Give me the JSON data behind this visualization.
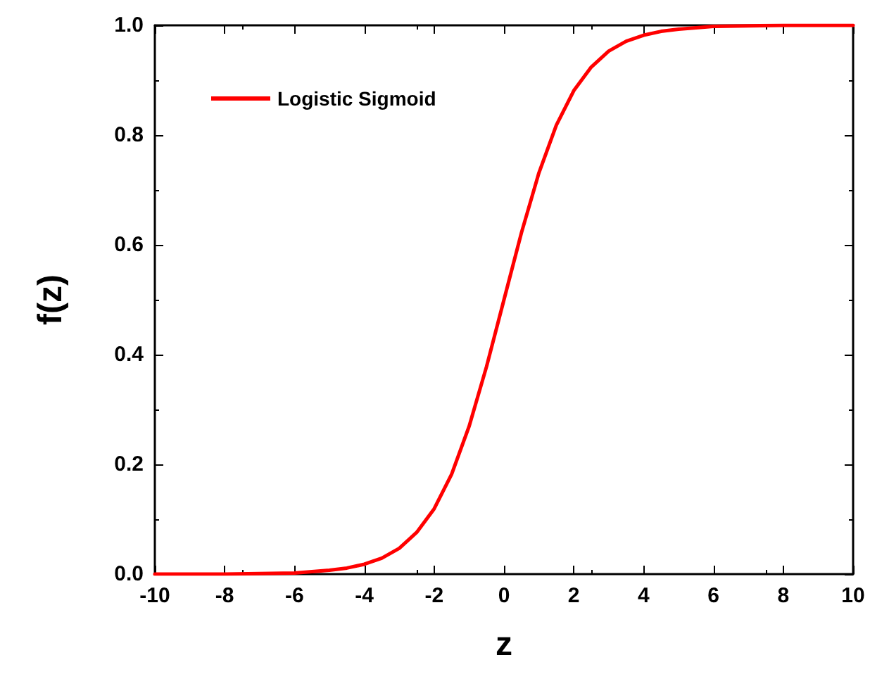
{
  "chart_data": {
    "type": "line",
    "xlabel": "z",
    "ylabel": "f(z)",
    "x": [
      -10,
      -9,
      -8,
      -7,
      -6,
      -5,
      -4.5,
      -4,
      -3.5,
      -3,
      -2.5,
      -2,
      -1.5,
      -1,
      -0.5,
      0,
      0.5,
      1,
      1.5,
      2,
      2.5,
      3,
      3.5,
      4,
      4.5,
      5,
      6,
      7,
      8,
      9,
      10
    ],
    "series": [
      {
        "name": "Logistic Sigmoid",
        "color": "#ff0000",
        "values": [
          0.0,
          0.0,
          0.0,
          0.001,
          0.002,
          0.007,
          0.011,
          0.018,
          0.029,
          0.047,
          0.076,
          0.119,
          0.182,
          0.269,
          0.378,
          0.5,
          0.622,
          0.731,
          0.818,
          0.881,
          0.924,
          0.953,
          0.971,
          0.982,
          0.989,
          0.993,
          0.998,
          0.999,
          1.0,
          1.0,
          1.0
        ]
      }
    ],
    "xlim": [
      -10,
      10
    ],
    "xticks": [
      -10,
      -8,
      -6,
      -4,
      -2,
      0,
      2,
      4,
      6,
      8,
      10
    ],
    "ylim": [
      0,
      1
    ],
    "yticks": [
      {
        "value": 0,
        "label": "0.0"
      },
      {
        "value": 0.2,
        "label": "0.2"
      },
      {
        "value": 0.4,
        "label": "0.4"
      },
      {
        "value": 0.6,
        "label": "0.6"
      },
      {
        "value": 0.8,
        "label": "0.8"
      },
      {
        "value": 1,
        "label": "1.0"
      }
    ],
    "grid": false,
    "legend": "top left",
    "marker": "none",
    "line_style": "solid"
  }
}
